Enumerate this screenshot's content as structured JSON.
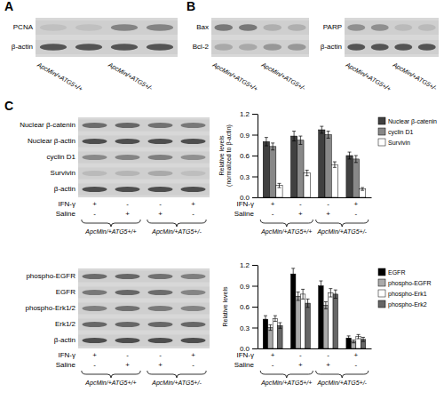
{
  "chart_data": [
    {
      "type": "blot",
      "title": "A",
      "rows": [
        "PCNA",
        "β-actin"
      ],
      "cells": [
        [
          0.75,
          0.75,
          0.5,
          0.5
        ],
        [
          0.3,
          0.3,
          0.3,
          0.3
        ]
      ],
      "lane_groups": [
        "ApcMin/+ATG5+/+",
        "ApcMin/+ATG5+/-"
      ]
    },
    {
      "type": "blot",
      "title": "B",
      "rows": [
        "Bax",
        "Bcl-2"
      ],
      "cells": [
        [
          0.45,
          0.45,
          0.68,
          0.68
        ],
        [
          0.65,
          0.65,
          0.58,
          0.58
        ]
      ],
      "lane_groups": [
        "ApcMin/+ATG5+/+",
        "ApcMin/+ATG5+/-"
      ]
    },
    {
      "type": "blot",
      "rows": [
        "PARP",
        "β-actin"
      ],
      "cells": [
        [
          0.55,
          0.55,
          0.72,
          0.72
        ],
        [
          0.3,
          0.3,
          0.3,
          0.3
        ]
      ],
      "lane_groups": [
        "ApcMin/+ATG5+/+",
        "ApcMin/+ATG5+/-"
      ]
    },
    {
      "type": "blot",
      "title": "C",
      "rows": [
        "Nuclear β-catenin",
        "Nuclear β-actin",
        "cyclin D1",
        "Survivin",
        "β-actin"
      ],
      "cells": [
        [
          0.4,
          0.38,
          0.42,
          0.45
        ],
        [
          0.28,
          0.28,
          0.28,
          0.28
        ],
        [
          0.52,
          0.5,
          0.48,
          0.55
        ],
        [
          0.72,
          0.7,
          0.65,
          0.74
        ],
        [
          0.28,
          0.28,
          0.28,
          0.28
        ]
      ],
      "conditions": [
        {
          "label": "IFN-γ",
          "values": [
            "+",
            "-",
            "-",
            "+"
          ]
        },
        {
          "label": "Saline",
          "values": [
            "-",
            "+",
            "+",
            "-"
          ]
        }
      ],
      "lane_groups": [
        "ApcMin/+ATG5+/+",
        "ApcMin/+ATG5+/-"
      ]
    },
    {
      "type": "bar",
      "y_label": "Relative levels\n(normalized to β-actin)",
      "ylim": [
        0,
        1.2
      ],
      "yticks": [
        {
          "value": 0,
          "label": "0.0"
        },
        0.3,
        0.6,
        0.9,
        1.2
      ],
      "series": [
        {
          "name": "Nuclear β-catenin",
          "color": "#404040",
          "values": [
            0.8,
            0.88,
            0.97,
            0.6
          ],
          "errors": [
            0.06,
            0.07,
            0.05,
            0.05
          ]
        },
        {
          "name": "cyclin D1",
          "color": "#888888",
          "values": [
            0.73,
            0.82,
            0.9,
            0.55
          ],
          "errors": [
            0.05,
            0.06,
            0.05,
            0.05
          ]
        },
        {
          "name": "Survivin",
          "color": "#ffffff",
          "values": [
            0.17,
            0.35,
            0.47,
            0.12
          ],
          "errors": [
            0.03,
            0.04,
            0.04,
            0.02
          ]
        }
      ],
      "legend": "right",
      "conditions": [
        {
          "label": "IFN-γ",
          "values": [
            "+",
            "-",
            "-",
            "+"
          ]
        },
        {
          "label": "Saline",
          "values": [
            "-",
            "+",
            "+",
            "-"
          ]
        }
      ],
      "lane_groups": [
        "ApcMin/+ATG5+/+",
        "ApcMin/+ATG5+/-"
      ]
    },
    {
      "type": "blot",
      "rows": [
        "phospho-EGFR",
        "EGFR",
        "phospho-Erk1/2",
        "Erk1/2",
        "β-actin"
      ],
      "cells": [
        [
          0.4,
          0.38,
          0.42,
          0.48
        ],
        [
          0.45,
          0.38,
          0.4,
          0.5
        ],
        [
          0.48,
          0.42,
          0.46,
          0.5
        ],
        [
          0.38,
          0.38,
          0.38,
          0.38
        ],
        [
          0.28,
          0.28,
          0.28,
          0.28
        ]
      ],
      "conditions": [
        {
          "label": "IFN-γ",
          "values": [
            "+",
            "-",
            "-",
            "+"
          ]
        },
        {
          "label": "Saline",
          "values": [
            "-",
            "+",
            "+",
            "-"
          ]
        }
      ],
      "lane_groups": [
        "ApcMin/+ATG5+/+",
        "ApcMin/+ATG5+/-"
      ]
    },
    {
      "type": "bar",
      "y_label": "Relative levels",
      "ylim": [
        0,
        1.2
      ],
      "yticks": [
        {
          "value": 0,
          "label": "0.0"
        },
        0.3,
        0.6,
        0.9,
        1.2
      ],
      "series": [
        {
          "name": "EGFR",
          "color": "#000000",
          "values": [
            0.42,
            1.07,
            0.9,
            0.15
          ],
          "errors": [
            0.05,
            0.08,
            0.07,
            0.03
          ]
        },
        {
          "name": "phospho-EGFR",
          "color": "#aaaaaa",
          "values": [
            0.3,
            0.75,
            0.62,
            0.1
          ],
          "errors": [
            0.04,
            0.06,
            0.05,
            0.02
          ]
        },
        {
          "name": "phospho-Erk1",
          "color": "#ffffff",
          "values": [
            0.43,
            0.78,
            0.8,
            0.17
          ],
          "errors": [
            0.04,
            0.07,
            0.06,
            0.03
          ]
        },
        {
          "name": "phospho-Erk2",
          "color": "#666666",
          "values": [
            0.33,
            0.65,
            0.78,
            0.13
          ],
          "errors": [
            0.04,
            0.06,
            0.06,
            0.03
          ]
        }
      ],
      "legend": "right",
      "conditions": [
        {
          "label": "IFN-γ",
          "values": [
            "+",
            "-",
            "-",
            "+"
          ]
        },
        {
          "label": "Saline",
          "values": [
            "-",
            "+",
            "+",
            "-"
          ]
        }
      ],
      "lane_groups": [
        "ApcMin/+ATG5+/+",
        "ApcMin/+ATG5+/-"
      ]
    }
  ]
}
